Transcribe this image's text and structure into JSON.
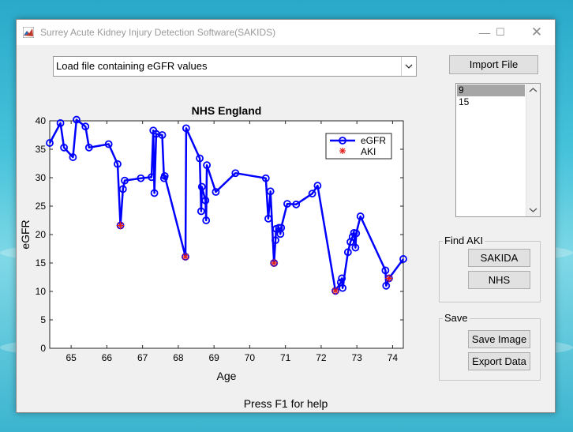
{
  "window": {
    "title": "Surrey Acute Kidney Injury Detection Software(SAKIDS)"
  },
  "file_select": {
    "selected": "Load file containing eGFR values"
  },
  "buttons": {
    "import": "Import File",
    "sakida": "SAKIDA",
    "nhs": "NHS",
    "save_image": "Save Image",
    "export_data": "Export Data"
  },
  "listbox": {
    "items": [
      "9",
      "15"
    ]
  },
  "panels": {
    "find_aki": "Find AKI",
    "save": "Save"
  },
  "help_text": "Press F1 for help",
  "chart_data": {
    "type": "line",
    "title": "NHS England",
    "xlabel": "Age",
    "ylabel": "eGFR",
    "xlim": [
      64.4,
      74.3
    ],
    "ylim": [
      0,
      40
    ],
    "xticks": [
      65,
      66,
      67,
      68,
      69,
      70,
      71,
      72,
      73,
      74
    ],
    "yticks": [
      0,
      5,
      10,
      15,
      20,
      25,
      30,
      35,
      40
    ],
    "legend_position": "top-right",
    "colors": {
      "egfr": "#0000ff",
      "aki": "#e0201a"
    },
    "series": [
      {
        "name": "eGFR",
        "marker": "circle",
        "x": [
          64.4,
          64.7,
          64.8,
          65.05,
          65.15,
          65.4,
          65.5,
          66.05,
          66.3,
          66.38,
          66.45,
          66.5,
          66.95,
          67.25,
          67.3,
          67.33,
          67.38,
          67.55,
          67.6,
          67.62,
          68.2,
          68.22,
          68.6,
          68.64,
          68.66,
          68.76,
          68.78,
          68.8,
          69.05,
          69.6,
          70.45,
          70.52,
          70.58,
          70.68,
          70.72,
          70.74,
          70.82,
          70.86,
          70.88,
          71.05,
          71.3,
          71.75,
          71.9,
          72.4,
          72.55,
          72.58,
          72.6,
          72.75,
          72.82,
          72.88,
          72.92,
          72.96,
          72.98,
          73.1,
          73.8,
          73.82,
          73.9,
          74.3
        ],
        "y": [
          36.1,
          39.6,
          35.3,
          33.6,
          40.2,
          39.0,
          35.3,
          35.9,
          32.4,
          21.6,
          28.0,
          29.5,
          29.9,
          30.1,
          38.3,
          27.3,
          37.7,
          37.5,
          29.9,
          30.3,
          16.1,
          38.7,
          33.4,
          24.1,
          28.4,
          26.0,
          22.5,
          32.2,
          27.5,
          30.8,
          29.9,
          22.8,
          27.6,
          15.0,
          19.0,
          21.0,
          21.2,
          20.1,
          21.2,
          25.4,
          25.3,
          27.2,
          28.6,
          10.1,
          11.6,
          12.3,
          10.6,
          16.9,
          18.7,
          19.6,
          20.3,
          17.7,
          20.2,
          23.2,
          13.7,
          11.0,
          12.3,
          15.7
        ]
      },
      {
        "name": "AKI",
        "marker": "star",
        "x": [
          66.38,
          68.2,
          70.68,
          72.4,
          73.9
        ],
        "y": [
          21.6,
          16.1,
          15.0,
          10.1,
          12.3
        ]
      }
    ]
  }
}
